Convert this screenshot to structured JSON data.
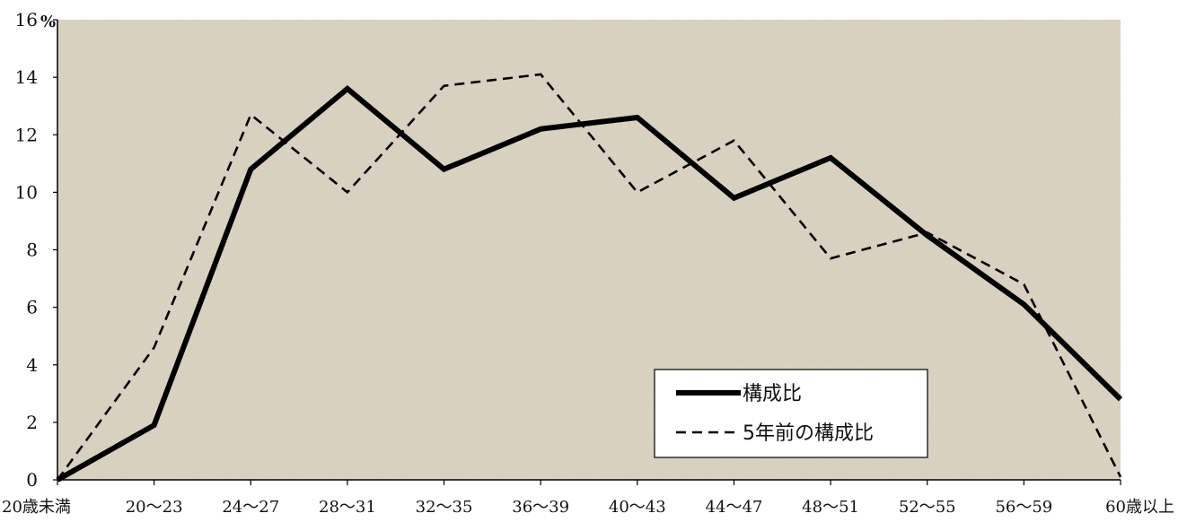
{
  "chart_data": {
    "type": "line",
    "categories": [
      "20歳未満",
      "20～23",
      "24～27",
      "28～31",
      "32～35",
      "36～39",
      "40～43",
      "44～47",
      "48～51",
      "52～55",
      "56～59",
      "60歳以上"
    ],
    "series": [
      {
        "name": "構成比",
        "values": [
          0,
          1.9,
          10.8,
          13.6,
          10.8,
          12.2,
          12.6,
          9.8,
          11.2,
          8.5,
          6.1,
          2.8
        ]
      },
      {
        "name": "5年前の構成比",
        "values": [
          0,
          4.6,
          12.7,
          10.0,
          13.7,
          14.1,
          10.0,
          11.8,
          7.7,
          8.6,
          6.8,
          0.1
        ]
      }
    ],
    "ylim": [
      0,
      16
    ],
    "y_ticks": [
      0,
      2,
      4,
      6,
      8,
      10,
      12,
      14,
      16
    ],
    "y_unit": "%",
    "title": "",
    "xlabel": "",
    "ylabel": "",
    "grid": false,
    "legend_position": "bottom-right",
    "colors": {
      "plot_background": "#ddd6c6",
      "series_line": "#000000",
      "axis": "#000000"
    },
    "line_styles": [
      "solid",
      "dashed"
    ]
  }
}
